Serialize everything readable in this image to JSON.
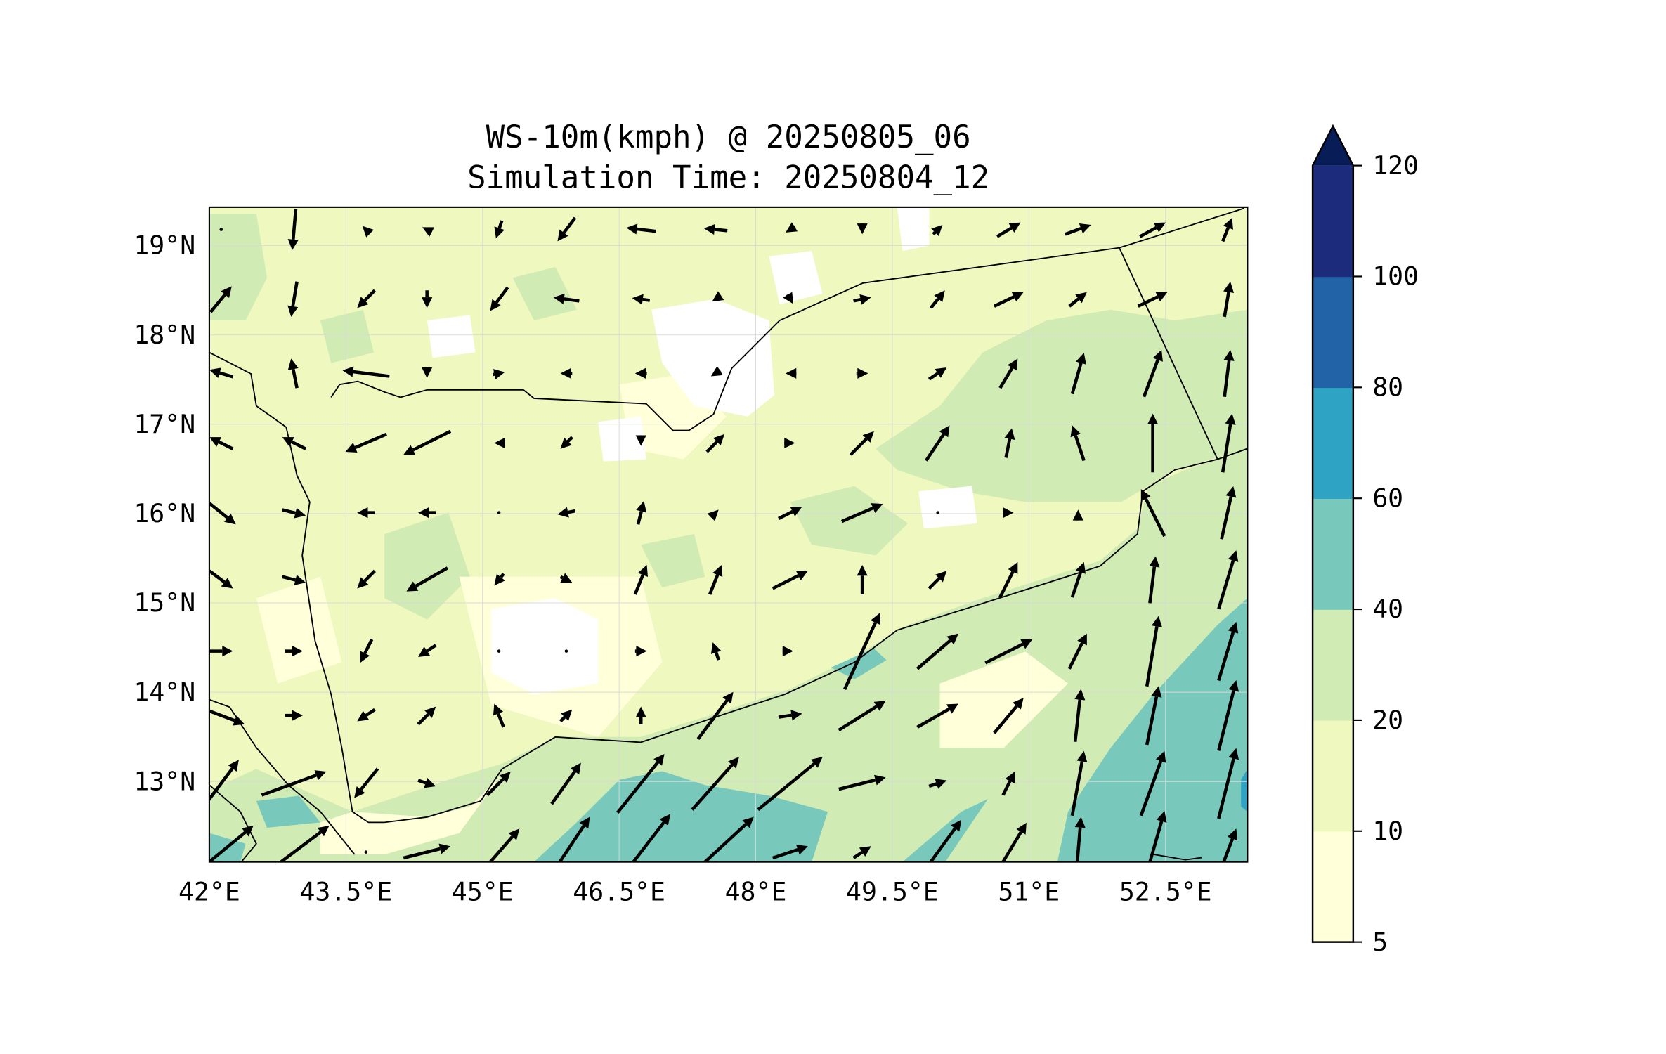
{
  "title": {
    "line1": "WS-10m(kmph) @ 20250805_06",
    "line2": "Simulation Time: 20250804_12"
  },
  "chart_data": {
    "type": "heatmap",
    "subtype": "filled contour map with wind vectors",
    "variable": "WS-10m(kmph)",
    "valid_time": "20250805_06",
    "simulation_time": "20250804_12",
    "lon_range": [
      42.0,
      53.4
    ],
    "lat_range": [
      12.1,
      19.43
    ],
    "x_tick_labels": [
      {
        "value": 42.0,
        "label": "42°E"
      },
      {
        "value": 43.5,
        "label": "43.5°E"
      },
      {
        "value": 45.0,
        "label": "45°E"
      },
      {
        "value": 46.5,
        "label": "46.5°E"
      },
      {
        "value": 48.0,
        "label": "48°E"
      },
      {
        "value": 49.5,
        "label": "49.5°E"
      },
      {
        "value": 51.0,
        "label": "51°E"
      },
      {
        "value": 52.5,
        "label": "52.5°E"
      }
    ],
    "y_tick_labels": [
      {
        "value": 19,
        "label": "19°N"
      },
      {
        "value": 18,
        "label": "18°N"
      },
      {
        "value": 17,
        "label": "17°N"
      },
      {
        "value": 16,
        "label": "16°N"
      },
      {
        "value": 15,
        "label": "15°N"
      },
      {
        "value": 14,
        "label": "14°N"
      },
      {
        "value": 13,
        "label": "13°N"
      }
    ],
    "grid": true,
    "colorbar": {
      "levels": [
        5,
        10,
        20,
        40,
        60,
        80,
        100,
        120
      ],
      "tick_labels": [
        "5",
        "10",
        "20",
        "40",
        "60",
        "80",
        "100",
        "120"
      ],
      "colors": [
        "#ffffd9",
        "#eff8bf",
        "#d0ebb3",
        "#78c9bb",
        "#2ea3c3",
        "#2263a8",
        "#1d2b7c"
      ],
      "extend_color": "#081d58",
      "extend": "max",
      "placement": "right"
    },
    "vectors": {
      "lons": [
        42.13,
        42.93,
        43.72,
        44.39,
        45.18,
        45.92,
        46.74,
        47.56,
        48.38,
        49.17,
        50.0,
        50.78,
        51.54,
        52.36,
        53.18
      ],
      "lats": [
        19.18,
        18.4,
        17.57,
        16.79,
        16.01,
        15.26,
        14.46,
        13.74,
        12.98,
        12.21
      ],
      "uv": [
        [
          [
            0,
            0
          ],
          [
            -3,
            -35
          ],
          [
            -6,
            6
          ],
          [
            -8,
            4
          ],
          [
            -5,
            -15
          ],
          [
            -15,
            -20
          ],
          [
            -25,
            3
          ],
          [
            -20,
            2
          ],
          [
            -8,
            -5
          ],
          [
            0,
            -8
          ],
          [
            8,
            8
          ],
          [
            20,
            12
          ],
          [
            22,
            8
          ],
          [
            22,
            12
          ],
          [
            8,
            20
          ]
        ],
        [
          [
            18,
            22
          ],
          [
            -5,
            -30
          ],
          [
            -15,
            -15
          ],
          [
            0,
            -15
          ],
          [
            -15,
            -20
          ],
          [
            -22,
            3
          ],
          [
            -15,
            2
          ],
          [
            -6,
            -4
          ],
          [
            5,
            -8
          ],
          [
            15,
            3
          ],
          [
            12,
            15
          ],
          [
            25,
            12
          ],
          [
            15,
            12
          ],
          [
            25,
            12
          ],
          [
            5,
            30
          ]
        ],
        [
          [
            -20,
            6
          ],
          [
            -5,
            25
          ],
          [
            -40,
            5
          ],
          [
            0,
            -8
          ],
          [
            10,
            2
          ],
          [
            -10,
            0
          ],
          [
            -10,
            0
          ],
          [
            -8,
            -5
          ],
          [
            -8,
            0
          ],
          [
            10,
            0
          ],
          [
            15,
            10
          ],
          [
            15,
            25
          ],
          [
            10,
            35
          ],
          [
            15,
            40
          ],
          [
            5,
            40
          ]
        ],
        [
          [
            -20,
            10
          ],
          [
            -20,
            10
          ],
          [
            -35,
            -15
          ],
          [
            -40,
            -20
          ],
          [
            -8,
            0
          ],
          [
            -10,
            -10
          ],
          [
            0,
            -5
          ],
          [
            15,
            15
          ],
          [
            8,
            0
          ],
          [
            20,
            20
          ],
          [
            20,
            30
          ],
          [
            5,
            25
          ],
          [
            -10,
            30
          ],
          [
            0,
            50
          ],
          [
            8,
            50
          ]
        ],
        [
          [
            25,
            -20
          ],
          [
            20,
            -5
          ],
          [
            -15,
            0
          ],
          [
            -15,
            0
          ],
          [
            0,
            0
          ],
          [
            -15,
            -3
          ],
          [
            5,
            20
          ],
          [
            5,
            5
          ],
          [
            20,
            10
          ],
          [
            35,
            15
          ],
          [
            0,
            0
          ],
          [
            8,
            0
          ],
          [
            0,
            5
          ],
          [
            -20,
            40
          ],
          [
            10,
            45
          ]
        ],
        [
          [
            20,
            -15
          ],
          [
            20,
            -5
          ],
          [
            -15,
            -15
          ],
          [
            -35,
            -20
          ],
          [
            -8,
            -10
          ],
          [
            10,
            -5
          ],
          [
            10,
            25
          ],
          [
            10,
            25
          ],
          [
            30,
            15
          ],
          [
            0,
            25
          ],
          [
            15,
            15
          ],
          [
            15,
            30
          ],
          [
            10,
            30
          ],
          [
            5,
            40
          ],
          [
            15,
            50
          ]
        ],
        [
          [
            20,
            0
          ],
          [
            15,
            0
          ],
          [
            -10,
            -20
          ],
          [
            -15,
            -10
          ],
          [
            0,
            0
          ],
          [
            0,
            0
          ],
          [
            10,
            0
          ],
          [
            -5,
            15
          ],
          [
            5,
            0
          ],
          [
            30,
            65
          ],
          [
            35,
            30
          ],
          [
            40,
            20
          ],
          [
            15,
            30
          ],
          [
            10,
            60
          ],
          [
            15,
            50
          ]
        ],
        [
          [
            40,
            -15
          ],
          [
            15,
            0
          ],
          [
            -15,
            -10
          ],
          [
            15,
            15
          ],
          [
            -8,
            20
          ],
          [
            10,
            10
          ],
          [
            0,
            15
          ],
          [
            30,
            40
          ],
          [
            20,
            3
          ],
          [
            40,
            25
          ],
          [
            35,
            20
          ],
          [
            25,
            30
          ],
          [
            5,
            45
          ],
          [
            10,
            50
          ],
          [
            15,
            60
          ]
        ],
        [
          [
            30,
            40
          ],
          [
            55,
            20
          ],
          [
            -20,
            -25
          ],
          [
            15,
            -5
          ],
          [
            20,
            20
          ],
          [
            25,
            35
          ],
          [
            40,
            50
          ],
          [
            40,
            45
          ],
          [
            55,
            45
          ],
          [
            40,
            10
          ],
          [
            15,
            5
          ],
          [
            10,
            20
          ],
          [
            10,
            55
          ],
          [
            20,
            55
          ],
          [
            15,
            60
          ]
        ],
        [
          [
            55,
            45
          ],
          [
            60,
            45
          ],
          [
            0,
            0
          ],
          [
            40,
            10
          ],
          [
            35,
            40
          ],
          [
            40,
            60
          ],
          [
            50,
            65
          ],
          [
            65,
            60
          ],
          [
            30,
            10
          ],
          [
            15,
            10
          ],
          [
            40,
            55
          ],
          [
            30,
            50
          ],
          [
            5,
            60
          ],
          [
            20,
            70
          ],
          [
            15,
            40
          ]
        ]
      ]
    }
  }
}
